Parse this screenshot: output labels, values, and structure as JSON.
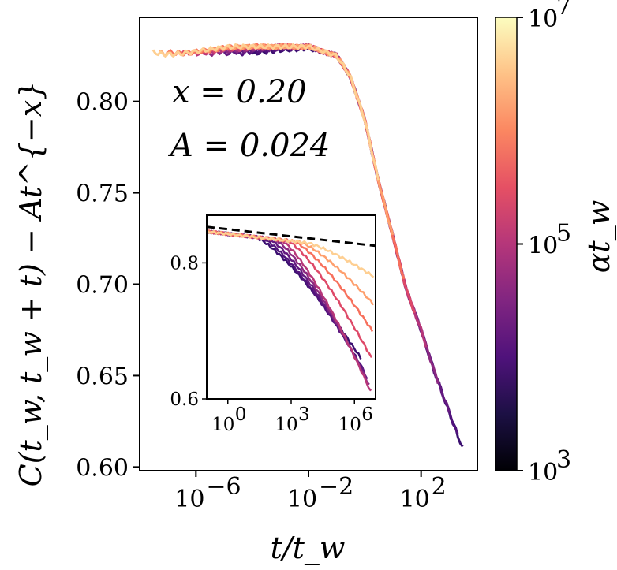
{
  "chart_data": [
    {
      "type": "line",
      "role": "main",
      "xscale": "log",
      "x_ticks": [
        1e-06,
        0.01,
        100
      ],
      "x_tick_labels": [
        "10",
        "10",
        "10"
      ],
      "x_tick_exponents": [
        "−6",
        "−2",
        "2"
      ],
      "xlim": [
        1e-08,
        10000
      ],
      "y_ticks": [
        0.6,
        0.65,
        0.7,
        0.75,
        0.8
      ],
      "y_tick_labels": [
        "0.60",
        "0.65",
        "0.70",
        "0.75",
        "0.80"
      ],
      "ylim": [
        0.598,
        0.846
      ],
      "xlabel": "t/t_w",
      "ylabel": "C(t_w, t_w + t) − At^{−x}",
      "annotations": [
        "x = 0.20",
        "A = 0.024"
      ],
      "series_count": 9,
      "master_curve": {
        "x": [
          1e-07,
          1e-05,
          0.0001,
          0.01,
          0.1,
          0.3,
          1,
          3,
          10,
          30,
          100,
          300,
          1000,
          3000
        ],
        "y": [
          0.827,
          0.83,
          0.83,
          0.83,
          0.825,
          0.814,
          0.79,
          0.757,
          0.726,
          0.697,
          0.675,
          0.652,
          0.63,
          0.61
        ]
      },
      "series": [
        {
          "color": "#3b0f70",
          "x_start": 0.0001,
          "y_start": 0.826,
          "x_end": 3000,
          "y_end": 0.61
        },
        {
          "color": "#51127c",
          "x_start": 3e-05,
          "y_start": 0.826,
          "x_end": 2000,
          "y_end": 0.614
        },
        {
          "color": "#641a80",
          "x_start": 1e-05,
          "y_start": 0.826,
          "x_end": 1000,
          "y_end": 0.62
        },
        {
          "color": "#8c2981",
          "x_start": 3e-06,
          "y_start": 0.826,
          "x_end": 400,
          "y_end": 0.642
        },
        {
          "color": "#b73779",
          "x_start": 1e-06,
          "y_start": 0.826,
          "x_end": 150,
          "y_end": 0.665
        },
        {
          "color": "#de4968",
          "x_start": 3e-07,
          "y_start": 0.827,
          "x_end": 60,
          "y_end": 0.69
        },
        {
          "color": "#f7705c",
          "x_start": 1e-07,
          "y_start": 0.827,
          "x_end": 25,
          "y_end": 0.715
        },
        {
          "color": "#fe9f6d",
          "x_start": 5e-08,
          "y_start": 0.827,
          "x_end": 10,
          "y_end": 0.727
        },
        {
          "color": "#fecf92",
          "x_start": 3e-08,
          "y_start": 0.827,
          "x_end": 3,
          "y_end": 0.757
        }
      ]
    },
    {
      "type": "line",
      "role": "inset",
      "xscale": "log",
      "x_ticks": [
        1,
        1000,
        1000000
      ],
      "x_tick_labels": [
        "10",
        "10",
        "10"
      ],
      "x_tick_exponents": [
        "0",
        "3",
        "6"
      ],
      "xlim": [
        0.1,
        10000000
      ],
      "y_ticks": [
        0.6,
        0.8
      ],
      "y_tick_labels": [
        "0.6",
        "0.8"
      ],
      "ylim": [
        0.6,
        0.87
      ],
      "dashed_reference": {
        "x": [
          0.1,
          10000000
        ],
        "y": [
          0.853,
          0.825
        ]
      },
      "series": [
        {
          "color": "#3b0f70",
          "x_knee": 20,
          "x_end": 2000000,
          "y_end": 0.66
        },
        {
          "color": "#51127c",
          "x_knee": 40,
          "x_end": 3000000,
          "y_end": 0.64
        },
        {
          "color": "#641a80",
          "x_knee": 80,
          "x_end": 4000000,
          "y_end": 0.63
        },
        {
          "color": "#8c2981",
          "x_knee": 160,
          "x_end": 5000000,
          "y_end": 0.62
        },
        {
          "color": "#b73779",
          "x_knee": 320,
          "x_end": 6000000,
          "y_end": 0.61
        },
        {
          "color": "#de4968",
          "x_knee": 640,
          "x_end": 6500000,
          "y_end": 0.66
        },
        {
          "color": "#f7705c",
          "x_knee": 1300,
          "x_end": 7000000,
          "y_end": 0.7
        },
        {
          "color": "#fe9f6d",
          "x_knee": 2600,
          "x_end": 7500000,
          "y_end": 0.74
        },
        {
          "color": "#fecf92",
          "x_knee": 6000,
          "x_end": 8000000,
          "y_end": 0.78
        }
      ]
    },
    {
      "type": "heatmap",
      "role": "colorbar",
      "label": "αt_w",
      "scale": "log",
      "range": [
        1000,
        10000000
      ],
      "ticks": [
        1000,
        100000,
        10000000
      ],
      "tick_labels": [
        "10",
        "10",
        "10"
      ],
      "tick_exponents": [
        "3",
        "5",
        "7"
      ],
      "colormap": [
        "#000004",
        "#1c1044",
        "#4f127b",
        "#812581",
        "#b5367a",
        "#e55064",
        "#fb8761",
        "#fec287",
        "#fcfdbf"
      ]
    }
  ]
}
